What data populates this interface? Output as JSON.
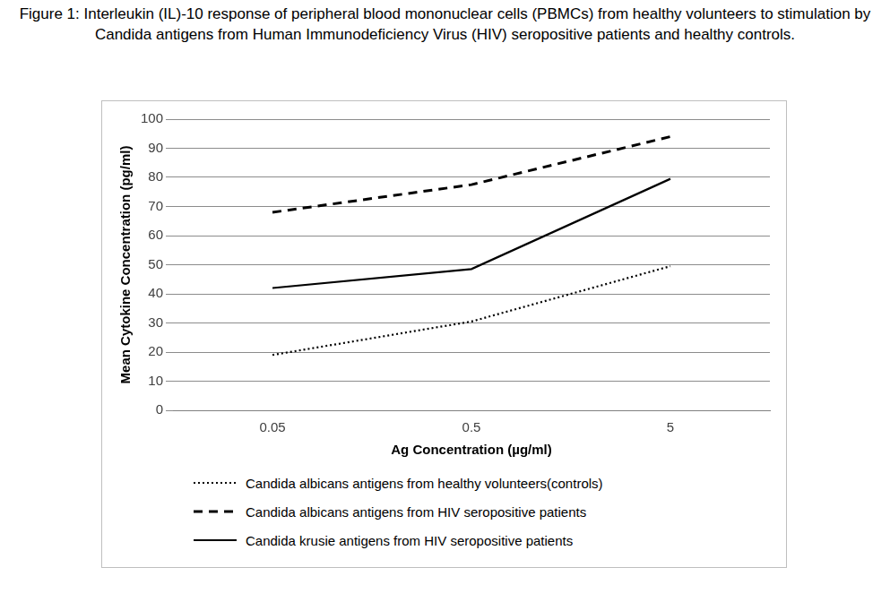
{
  "chart_data": {
    "type": "line",
    "title": "Figure 1: Interleukin (IL)-10 response of peripheral blood mononuclear cells (PBMCs) from healthy volunteers to stimulation by Candida antigens from Human Immunodeficiency Virus (HIV) seropositive patients and healthy controls.",
    "x_label": "Ag Concentration (µg/ml)",
    "y_label": "Mean Cytokine Concentration (pg/ml)",
    "categories": [
      "0.05",
      "0.5",
      "5"
    ],
    "series": [
      {
        "name": "Candida albicans antigens from healthy volunteers(controls)",
        "color": "#000000",
        "line_style": "dotted",
        "values": [
          19,
          30.5,
          49.5
        ]
      },
      {
        "name": "Candida albicans antigens from HIV seropositive patients",
        "color": "#000000",
        "line_style": "dashed",
        "values": [
          68,
          77.5,
          94
        ]
      },
      {
        "name": "Candida krusie antigens from HIV seropositive patients",
        "color": "#000000",
        "line_style": "solid",
        "values": [
          42,
          48.5,
          79.5
        ]
      }
    ],
    "ylim": [
      0,
      100
    ],
    "yticks": [
      0,
      10,
      20,
      30,
      40,
      50,
      60,
      70,
      80,
      90,
      100
    ],
    "grid": true,
    "legend": "bottom"
  }
}
